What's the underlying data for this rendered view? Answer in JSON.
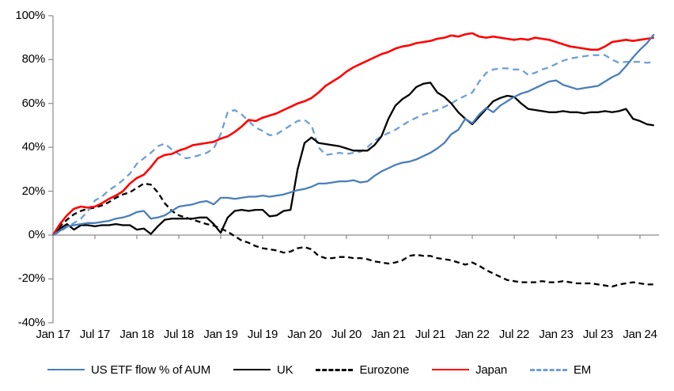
{
  "chart_data": {
    "type": "line",
    "title": "",
    "grid": "zero-line-only",
    "legend_position": "bottom",
    "y_axis": {
      "unit": "%",
      "min": -40,
      "max": 100,
      "tick_step": 20,
      "tick_labels": [
        "100%",
        "80%",
        "60%",
        "40%",
        "20%",
        "0%",
        "-20%",
        "-40%"
      ]
    },
    "x_axis": {
      "tick_labels": [
        "Jan 17",
        "Jul 17",
        "Jan 18",
        "Jul 18",
        "Jan 19",
        "Jul 19",
        "Jan 20",
        "Jul 20",
        "Jan 21",
        "Jul 21",
        "Jan 22",
        "Jul 22",
        "Jan 23",
        "Jul 23",
        "Jan 24"
      ],
      "interval_months": 6,
      "points_are_monthly_from": "Jan 17"
    },
    "axis_color": "#8c8c8c",
    "series": [
      {
        "name": "US ETF flow % of AUM",
        "color": "#4a7ebb",
        "style": "solid",
        "values": [
          0,
          2,
          4,
          4.5,
          5,
          5.5,
          5.5,
          6,
          6.5,
          7.5,
          8,
          9,
          10.5,
          11,
          7.5,
          8,
          9,
          11,
          13,
          13.5,
          14,
          15,
          15.5,
          14,
          17,
          17,
          16.5,
          17,
          17.5,
          17.5,
          18,
          17.5,
          18,
          18.5,
          19.5,
          20.5,
          21,
          22,
          23.5,
          23.5,
          24,
          24.5,
          24.5,
          25,
          24,
          24.5,
          27,
          29,
          30.5,
          32,
          33,
          33.5,
          34.5,
          36,
          37.5,
          39.5,
          42,
          46,
          48,
          53,
          51,
          55,
          58,
          56,
          59,
          61,
          63,
          64.5,
          65.5,
          67,
          68.5,
          70,
          70.5,
          68.5,
          67.5,
          66.5,
          67,
          67.5,
          68,
          70,
          72,
          73.5,
          77,
          81,
          84.5,
          87.5,
          91.5
        ]
      },
      {
        "name": "UK",
        "color": "#000000",
        "style": "solid",
        "values": [
          0,
          3,
          5,
          2.5,
          4.5,
          4.5,
          4,
          4.5,
          4.5,
          5,
          4.5,
          4.5,
          2.5,
          3,
          0.5,
          4,
          7,
          7.5,
          7.5,
          7.5,
          7.5,
          8,
          8,
          5,
          1,
          8,
          11,
          11.5,
          11,
          11.5,
          11.5,
          8.5,
          9,
          11,
          11.5,
          30,
          42,
          44.5,
          42,
          41.5,
          41,
          40.5,
          39.5,
          38.5,
          38.5,
          38.5,
          41,
          45,
          53,
          59,
          62,
          64,
          67.5,
          69,
          69.5,
          65,
          63,
          60,
          56,
          53,
          50.5,
          54,
          57.5,
          61,
          62.5,
          63.5,
          63,
          60,
          57.5,
          57,
          56.5,
          56,
          56,
          56.5,
          56,
          56,
          55.5,
          56,
          56,
          56.5,
          56,
          56.5,
          57.5,
          53,
          52,
          50.5,
          50
        ]
      },
      {
        "name": "Eurozone",
        "color": "#000000",
        "style": "dashed",
        "values": [
          0,
          4,
          7,
          9.5,
          11,
          12,
          12.5,
          13.5,
          15,
          17,
          18.5,
          19.5,
          21.5,
          23.5,
          23,
          19.5,
          14.5,
          11,
          9,
          8,
          7,
          6,
          5,
          4.3,
          3,
          1.5,
          -0.5,
          -2.5,
          -3.5,
          -5,
          -6,
          -6.5,
          -7,
          -8,
          -7.5,
          -6,
          -5.5,
          -6.5,
          -9.5,
          -10.5,
          -10.5,
          -10,
          -10,
          -10.5,
          -10.5,
          -11,
          -12,
          -12.5,
          -13,
          -12.5,
          -11.5,
          -9.5,
          -9,
          -9.5,
          -9.5,
          -10.5,
          -11,
          -11.5,
          -12.5,
          -13.5,
          -12.5,
          -14,
          -16,
          -17.5,
          -19,
          -20.5,
          -21,
          -21.5,
          -21.5,
          -21.5,
          -21,
          -21.5,
          -21.5,
          -21,
          -21.5,
          -22,
          -22,
          -22,
          -22.5,
          -23,
          -23.5,
          -22.5,
          -22,
          -21.5,
          -22,
          -22.5,
          -22.5
        ]
      },
      {
        "name": "Japan",
        "color": "#ff0000",
        "style": "solid",
        "values": [
          0,
          5,
          9,
          12,
          13,
          12.5,
          13,
          14.5,
          16.5,
          18,
          20,
          23.5,
          26,
          27.5,
          31,
          35,
          36.5,
          37,
          38.5,
          39.5,
          41,
          41.5,
          42,
          42.5,
          44,
          45,
          47,
          49.5,
          52.5,
          52,
          53.5,
          54.5,
          55.5,
          57,
          58.5,
          60,
          61,
          62.5,
          65,
          68,
          70,
          72,
          74.5,
          76.5,
          78,
          79.5,
          81,
          82.5,
          83.5,
          85,
          86,
          86.5,
          87.5,
          88,
          88.5,
          89.5,
          90,
          91,
          90.5,
          91.5,
          92,
          90.5,
          90,
          90.5,
          90,
          89.5,
          89,
          89.5,
          89,
          90,
          89.5,
          89,
          88,
          87,
          86,
          85.5,
          85,
          84.5,
          84.5,
          86,
          88,
          88.5,
          89,
          88.5,
          89,
          89.5,
          90
        ]
      },
      {
        "name": "EM",
        "color": "#6f9fd4",
        "style": "dashed",
        "values": [
          0,
          1.5,
          3.7,
          5.5,
          7.5,
          11,
          15.8,
          17.5,
          20.5,
          22.5,
          25,
          28,
          32.5,
          35,
          37.5,
          40.5,
          41.7,
          39,
          37,
          35,
          35.5,
          36.5,
          37.5,
          39.5,
          46,
          56,
          57,
          55,
          52,
          49,
          47.5,
          45.5,
          46,
          48,
          50,
          52,
          52.5,
          50,
          40,
          36.5,
          37,
          37.5,
          37,
          37.5,
          38,
          40,
          43,
          45,
          46.5,
          48,
          50,
          52,
          53.5,
          55,
          56,
          57,
          58.5,
          60,
          62,
          63.5,
          65,
          70,
          74,
          75.5,
          76,
          76,
          75.5,
          75.5,
          73,
          74,
          75.5,
          76.5,
          78,
          79.5,
          80.5,
          81,
          81.5,
          82,
          82,
          82,
          80,
          78.5,
          79,
          79,
          79,
          78.5,
          79
        ]
      }
    ]
  }
}
